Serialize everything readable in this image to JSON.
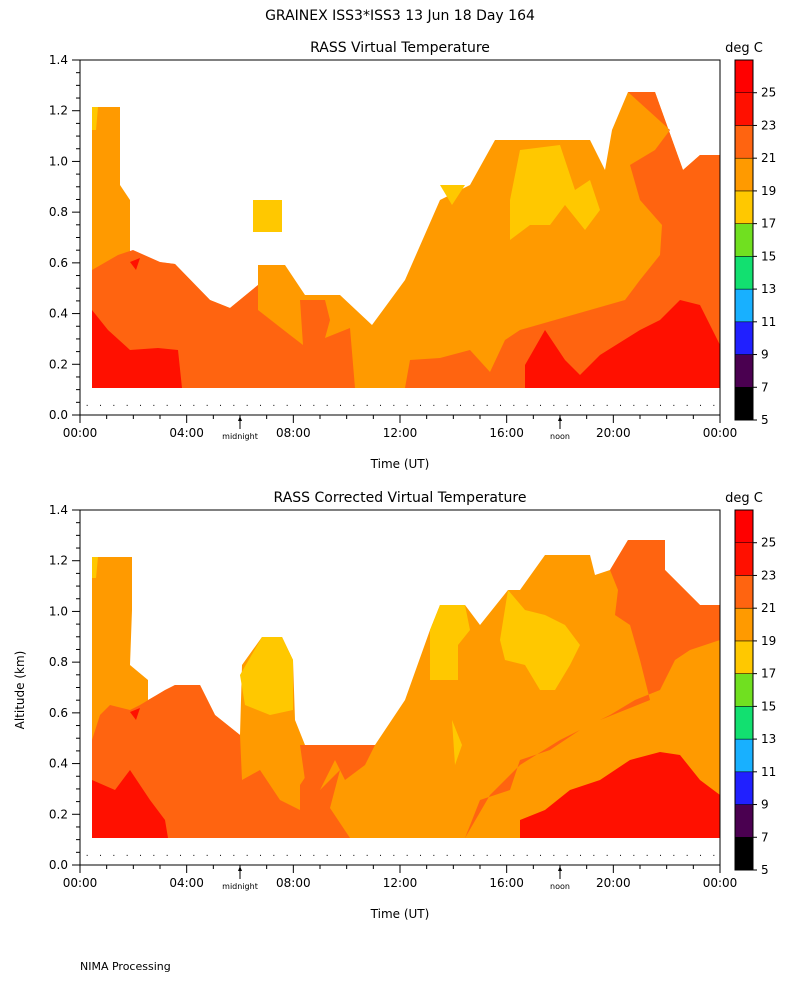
{
  "page": {
    "title": "GRAINEX ISS3*ISS3  13 Jun 18 Day 164",
    "footer": "NIMA Processing"
  },
  "colors": {
    "c5": "#000000",
    "c7": "#4a0050",
    "c9": "#2020ff",
    "c11": "#18b0ff",
    "c13": "#12e070",
    "c15": "#70e020",
    "c17": "#ffc800",
    "c19": "#ff9a00",
    "c21": "#ff6410",
    "c23": "#ff1000",
    "c25": "#ff0000"
  },
  "chart_data": [
    {
      "type": "heatmap",
      "title": "RASS Virtual Temperature",
      "xlabel": "Time (UT)",
      "ylabel": "",
      "xlim": [
        0,
        24
      ],
      "ylim": [
        0,
        1.4
      ],
      "x_ticks": [
        "00:00",
        "04:00",
        "08:00",
        "12:00",
        "16:00",
        "20:00",
        "00:00"
      ],
      "y_ticks": [
        "0.0",
        "0.2",
        "0.4",
        "0.6",
        "0.8",
        "1.0",
        "1.2",
        "1.4"
      ],
      "markers": [
        "midnight",
        "noon"
      ],
      "legend_title": "deg C",
      "legend_values": [
        "5",
        "7",
        "9",
        "11",
        "13",
        "15",
        "17",
        "19",
        "21",
        "23",
        "25"
      ]
    },
    {
      "type": "heatmap",
      "title": "RASS Corrected Virtual Temperature",
      "xlabel": "Time (UT)",
      "ylabel": "Altitude (km)",
      "xlim": [
        0,
        24
      ],
      "ylim": [
        0,
        1.4
      ],
      "x_ticks": [
        "00:00",
        "04:00",
        "08:00",
        "12:00",
        "16:00",
        "20:00",
        "00:00"
      ],
      "y_ticks": [
        "0.0",
        "0.2",
        "0.4",
        "0.6",
        "0.8",
        "1.0",
        "1.2",
        "1.4"
      ],
      "markers": [
        "midnight",
        "noon"
      ],
      "legend_title": "deg C",
      "legend_values": [
        "5",
        "7",
        "9",
        "11",
        "13",
        "15",
        "17",
        "19",
        "21",
        "23",
        "25"
      ]
    }
  ]
}
